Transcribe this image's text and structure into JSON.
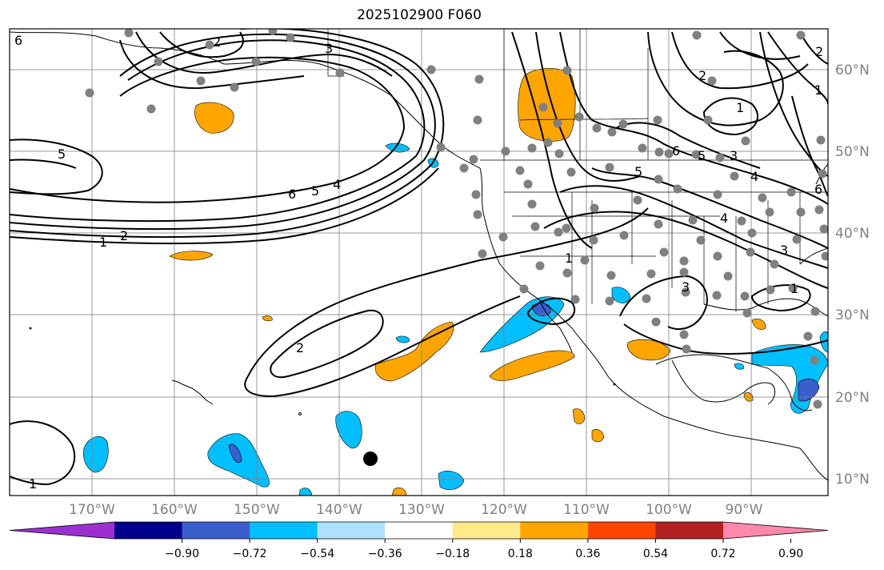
{
  "title": "2025102900 F060",
  "latitude_labels": [
    "60°N",
    "50°N",
    "40°N",
    "30°N",
    "20°N",
    "10°N"
  ],
  "longitude_labels": [
    "170°W",
    "160°W",
    "150°W",
    "140°W",
    "130°W",
    "120°W",
    "110°W",
    "100°W",
    "90°W"
  ],
  "colorbar": {
    "tick_labels": [
      "−0.90",
      "−0.72",
      "−0.54",
      "−0.36",
      "−0.18",
      "0.18",
      "0.36",
      "0.54",
      "0.72",
      "0.90"
    ],
    "colors": [
      "#9b30d0",
      "#00008b",
      "#3a5fcd",
      "#00bfff",
      "#aee0ff",
      "#ffffff",
      "#ffeb8a",
      "#ffa500",
      "#ff4500",
      "#b22222",
      "#ff88aa"
    ]
  },
  "contour_labels": [
    "6",
    "2",
    "3",
    "5",
    "6",
    "5",
    "4",
    "1",
    "2",
    "1",
    "2",
    "1",
    "2",
    "5",
    "6",
    "5",
    "4",
    "3",
    "2",
    "1",
    "3",
    "1",
    "3",
    "4",
    "1",
    "6"
  ],
  "colors": {
    "orange_fill": "#ffa500",
    "light_orange_fill": "#ffa500",
    "blue_fill": "#00bfff",
    "dark_blue_fill": "#3a5fcd",
    "grid": "#808080",
    "station_dot": "#808080"
  }
}
